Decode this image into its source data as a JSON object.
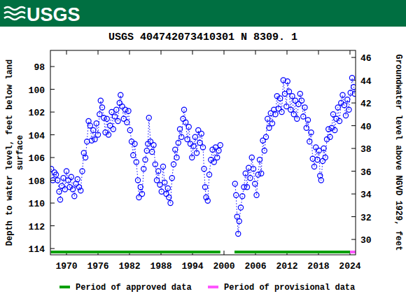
{
  "header": {
    "logo": "USGS"
  },
  "chart_data": {
    "type": "scatter",
    "title": "USGS 404742073410301 N  8309. 1",
    "y_label": "Depth to water level, feet below land surface",
    "y2_label": "Groundwater level above NGVD 1929, feet",
    "xlim": [
      1966.93,
      2025.07
    ],
    "xticks": [
      1970,
      1976,
      1982,
      1988,
      1994,
      2000,
      2006,
      2012,
      2018,
      2024
    ],
    "ylim": [
      114.55,
      96.58
    ],
    "yticks": [
      98,
      100,
      102,
      104,
      106,
      108,
      110,
      112,
      114
    ],
    "y2lim": [
      28.65,
      46.62
    ],
    "y2ticks": [
      30,
      32,
      34,
      36,
      38,
      40,
      42,
      44,
      46
    ],
    "grid": false,
    "x": [
      1967.1,
      1967.4,
      1967.7,
      1968.0,
      1968.3,
      1968.6,
      1968.8,
      1969.1,
      1969.4,
      1969.7,
      1970.0,
      1970.3,
      1970.6,
      1970.9,
      1971.2,
      1971.5,
      1971.8,
      1972.1,
      1972.4,
      1972.7,
      1973.0,
      1973.3,
      1973.6,
      1973.9,
      1974.2,
      1974.5,
      1974.8,
      1975.1,
      1975.4,
      1975.7,
      1976.0,
      1976.3,
      1976.5,
      1976.8,
      1977.1,
      1977.4,
      1977.7,
      1978.0,
      1978.3,
      1978.6,
      1978.9,
      1979.2,
      1979.5,
      1979.8,
      1980.1,
      1980.3,
      1980.6,
      1980.9,
      1981.2,
      1981.5,
      1981.8,
      1982.1,
      1982.4,
      1982.7,
      1983.0,
      1983.3,
      1983.6,
      1983.8,
      1984.1,
      1984.4,
      1984.7,
      1985.0,
      1985.3,
      1985.5,
      1985.7,
      1986.0,
      1986.3,
      1986.6,
      1986.9,
      1987.2,
      1987.5,
      1987.8,
      1988.1,
      1988.4,
      1988.7,
      1989.0,
      1989.3,
      1989.5,
      1989.8,
      1990.1,
      1990.4,
      1990.7,
      1991.0,
      1991.3,
      1991.6,
      1991.9,
      1992.2,
      1992.4,
      1992.7,
      1993.0,
      1993.3,
      1993.6,
      1993.9,
      1994.2,
      1994.5,
      1994.8,
      1995.1,
      1995.4,
      1995.7,
      1996.0,
      1996.2,
      1996.4,
      1996.6,
      1996.9,
      1997.2,
      1997.5,
      1997.8,
      1998.1,
      1998.4,
      1998.7,
      1999.0,
      1999.3,
      2000.5,
      2002.1,
      2002.3,
      2002.5,
      2002.7,
      2002.9,
      2003.2,
      2003.5,
      2003.8,
      2004.1,
      2004.4,
      2004.7,
      2005.0,
      2005.3,
      2005.6,
      2005.9,
      2006.2,
      2006.5,
      2006.8,
      2007.1,
      2007.4,
      2007.7,
      2008.0,
      2008.3,
      2008.6,
      2008.9,
      2009.2,
      2009.5,
      2009.8,
      2010.1,
      2010.4,
      2010.7,
      2011.0,
      2011.3,
      2011.6,
      2011.9,
      2012.1,
      2012.4,
      2012.7,
      2013.0,
      2013.3,
      2013.6,
      2013.9,
      2014.2,
      2014.5,
      2014.8,
      2015.1,
      2015.4,
      2015.7,
      2016.0,
      2016.3,
      2016.6,
      2016.9,
      2017.2,
      2017.5,
      2017.8,
      2018.1,
      2018.3,
      2018.5,
      2018.8,
      2019.0,
      2019.3,
      2019.6,
      2019.9,
      2020.2,
      2020.5,
      2020.8,
      2021.1,
      2021.4,
      2021.7,
      2022.0,
      2022.3,
      2022.6,
      2022.9,
      2023.2,
      2023.5,
      2023.8,
      2024.1,
      2024.4,
      2024.7,
      2024.9
    ],
    "series": [
      {
        "color": "#0000ff",
        "marker": "circle",
        "line_style": "dotted",
        "values": [
          107.0,
          108.0,
          107.3,
          107.5,
          108.0,
          109.0,
          109.7,
          108.5,
          107.8,
          108.8,
          107.2,
          108.0,
          108.6,
          107.7,
          108.8,
          109.4,
          108.3,
          107.9,
          108.6,
          108.9,
          107.2,
          105.6,
          106.0,
          104.6,
          102.8,
          103.2,
          104.5,
          103.6,
          104.4,
          103.0,
          104.0,
          102.2,
          101.0,
          101.6,
          102.5,
          103.8,
          102.6,
          104.0,
          103.2,
          102.0,
          103.5,
          102.4,
          101.8,
          102.8,
          101.2,
          100.5,
          101.5,
          102.6,
          101.8,
          102.9,
          101.9,
          103.6,
          104.6,
          105.8,
          104.8,
          106.4,
          108.0,
          109.5,
          108.6,
          109.2,
          107.0,
          106.2,
          105.4,
          104.8,
          102.5,
          104.6,
          105.5,
          104.9,
          106.6,
          108.0,
          107.2,
          108.4,
          109.0,
          106.8,
          108.2,
          109.2,
          108.7,
          109.5,
          110.0,
          107.8,
          106.6,
          105.3,
          106.0,
          104.7,
          103.5,
          104.2,
          102.6,
          101.8,
          102.9,
          104.4,
          103.3,
          104.8,
          106.0,
          105.0,
          104.2,
          105.6,
          103.6,
          104.7,
          103.9,
          105.1,
          107.0,
          108.6,
          109.5,
          109.8,
          107.5,
          106.2,
          105.3,
          106.4,
          105.1,
          106.0,
          105.4,
          104.9,
          null,
          108.3,
          109.3,
          111.2,
          112.7,
          111.6,
          110.4,
          109.4,
          108.6,
          107.4,
          108.6,
          106.9,
          107.8,
          106.0,
          107.0,
          108.3,
          109.3,
          107.5,
          106.2,
          107.4,
          104.5,
          105.4,
          104.2,
          102.6,
          103.4,
          102.1,
          103.0,
          101.8,
          102.2,
          100.6,
          101.7,
          100.8,
          102.0,
          99.2,
          100.4,
          101.5,
          99.3,
          100.2,
          101.8,
          100.6,
          102.2,
          101.0,
          102.6,
          101.3,
          100.4,
          101.0,
          102.4,
          101.6,
          103.4,
          102.7,
          104.6,
          103.8,
          106.1,
          106.8,
          105.1,
          106.2,
          105.4,
          107.6,
          108.0,
          106.3,
          105.2,
          106.0,
          104.4,
          103.5,
          104.2,
          103.4,
          102.2,
          103.6,
          102.6,
          101.6,
          102.8,
          101.2,
          100.5,
          101.4,
          102.3,
          100.9,
          101.8,
          100.3,
          99.0,
          99.8,
          100.4
        ]
      }
    ],
    "periods": [
      {
        "name": "Period of approved data",
        "color": "#00a000",
        "ranges": [
          [
            1967.0,
            1999.3
          ],
          [
            2002.0,
            2024.0
          ]
        ]
      },
      {
        "name": "Period of provisional data",
        "color": "#ff55ff",
        "ranges": [
          [
            2024.0,
            2025.07
          ]
        ]
      }
    ]
  }
}
